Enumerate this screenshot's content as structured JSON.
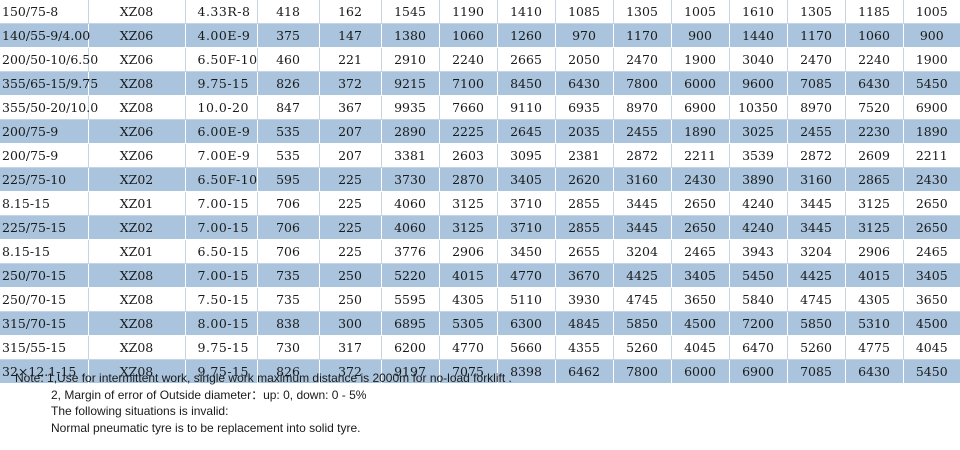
{
  "table": {
    "rows": [
      [
        "150/75-8",
        "XZ08",
        "4.33R-8",
        "418",
        "162",
        "1545",
        "1190",
        "1410",
        "1085",
        "1305",
        "1005",
        "1610",
        "1305",
        "1185",
        "1005"
      ],
      [
        "140/55-9/4.00",
        "XZ06",
        "4.00E-9",
        "375",
        "147",
        "1380",
        "1060",
        "1260",
        "970",
        "1170",
        "900",
        "1440",
        "1170",
        "1060",
        "900"
      ],
      [
        "200/50-10/6.50",
        "XZ06",
        "6.50F-10",
        "460",
        "221",
        "2910",
        "2240",
        "2665",
        "2050",
        "2470",
        "1900",
        "3040",
        "2470",
        "2240",
        "1900"
      ],
      [
        "355/65-15/9.75",
        "XZ08",
        "9.75-15",
        "826",
        "372",
        "9215",
        "7100",
        "8450",
        "6430",
        "7800",
        "6000",
        "9600",
        "7085",
        "6430",
        "5450"
      ],
      [
        "355/50-20/10.0",
        "XZ08",
        "10.0-20",
        "847",
        "367",
        "9935",
        "7660",
        "9110",
        "6935",
        "8970",
        "6900",
        "10350",
        "8970",
        "7520",
        "6900"
      ],
      [
        "200/75-9",
        "XZ06",
        "6.00E-9",
        "535",
        "207",
        "2890",
        "2225",
        "2645",
        "2035",
        "2455",
        "1890",
        "3025",
        "2455",
        "2230",
        "1890"
      ],
      [
        "200/75-9",
        "XZ06",
        "7.00E-9",
        "535",
        "207",
        "3381",
        "2603",
        "3095",
        "2381",
        "2872",
        "2211",
        "3539",
        "2872",
        "2609",
        "2211"
      ],
      [
        "225/75-10",
        "XZ02",
        "6.50F-10",
        "595",
        "225",
        "3730",
        "2870",
        "3405",
        "2620",
        "3160",
        "2430",
        "3890",
        "3160",
        "2865",
        "2430"
      ],
      [
        "8.15-15",
        "XZ01",
        "7.00-15",
        "706",
        "225",
        "4060",
        "3125",
        "3710",
        "2855",
        "3445",
        "2650",
        "4240",
        "3445",
        "3125",
        "2650"
      ],
      [
        "225/75-15",
        "XZ02",
        "7.00-15",
        "706",
        "225",
        "4060",
        "3125",
        "3710",
        "2855",
        "3445",
        "2650",
        "4240",
        "3445",
        "3125",
        "2650"
      ],
      [
        "8.15-15",
        "XZ01",
        "6.50-15",
        "706",
        "225",
        "3776",
        "2906",
        "3450",
        "2655",
        "3204",
        "2465",
        "3943",
        "3204",
        "2906",
        "2465"
      ],
      [
        "250/70-15",
        "XZ08",
        "7.00-15",
        "735",
        "250",
        "5220",
        "4015",
        "4770",
        "3670",
        "4425",
        "3405",
        "5450",
        "4425",
        "4015",
        "3405"
      ],
      [
        "250/70-15",
        "XZ08",
        "7.50-15",
        "735",
        "250",
        "5595",
        "4305",
        "5110",
        "3930",
        "4745",
        "3650",
        "5840",
        "4745",
        "4305",
        "3650"
      ],
      [
        "315/70-15",
        "XZ08",
        "8.00-15",
        "838",
        "300",
        "6895",
        "5305",
        "6300",
        "4845",
        "5850",
        "4500",
        "7200",
        "5850",
        "5310",
        "4500"
      ],
      [
        "315/55-15",
        "XZ08",
        "9.75-15",
        "730",
        "317",
        "6200",
        "4770",
        "5660",
        "4355",
        "5260",
        "4045",
        "6470",
        "5260",
        "4775",
        "4045"
      ],
      [
        "32×12.1-15",
        "XZ08",
        "9.75-15",
        "826",
        "372",
        "9197",
        "7075",
        "8398",
        "6462",
        "7800",
        "6000",
        "6900",
        "7085",
        "6430",
        "5450"
      ]
    ]
  },
  "note": {
    "lines": [
      "Note: 1,Use for intermittent work, single work maximum distance is 2000m for no-load forklift .",
      "2, Margin of error of Outside diameter：up: 0, down: 0 - 5%",
      "The following situations is invalid:",
      "Normal pneumatic tyre is to be replacement into solid tyre."
    ]
  }
}
